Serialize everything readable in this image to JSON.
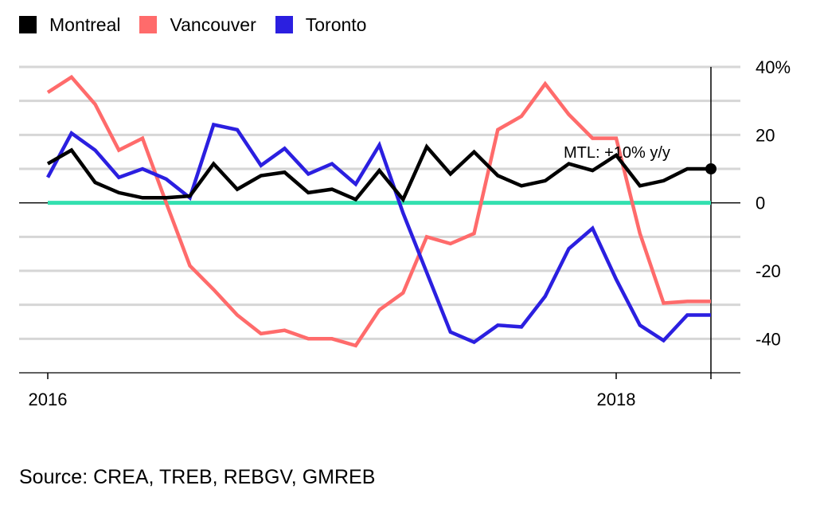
{
  "chart_data": {
    "type": "line",
    "title": "",
    "xlabel": "",
    "ylabel": "",
    "ylim": [
      -50,
      40
    ],
    "yticks": [
      40,
      20,
      0,
      -20,
      -40
    ],
    "ytick_labels": [
      "40%",
      "20",
      "0",
      "-20",
      "-40"
    ],
    "xticks": [
      "2016",
      "2018"
    ],
    "grid": true,
    "legend_position": "top-left",
    "x": [
      "2016-01",
      "2016-02",
      "2016-03",
      "2016-04",
      "2016-05",
      "2016-06",
      "2016-07",
      "2016-08",
      "2016-09",
      "2016-10",
      "2016-11",
      "2016-12",
      "2017-01",
      "2017-02",
      "2017-03",
      "2017-04",
      "2017-05",
      "2017-06",
      "2017-07",
      "2017-08",
      "2017-09",
      "2017-10",
      "2017-11",
      "2017-12",
      "2018-01",
      "2018-02",
      "2018-03",
      "2018-04",
      "2018-05"
    ],
    "series": [
      {
        "name": "Montreal",
        "color": "#000000",
        "values": [
          11.5,
          15.5,
          6,
          3,
          1.5,
          1.5,
          2,
          11.5,
          4,
          8,
          9,
          3,
          4,
          1,
          9.5,
          1,
          16.5,
          8.5,
          15,
          8,
          5,
          6.5,
          11.5,
          9.5,
          14,
          5,
          6.5,
          10,
          10
        ]
      },
      {
        "name": "Vancouver",
        "color": "#ff6b6b",
        "values": [
          32.5,
          37,
          29,
          15.5,
          19,
          0,
          -18.5,
          -25.5,
          -33,
          -38.5,
          -37.5,
          -40,
          -40,
          -42,
          -31.5,
          -26.5,
          -10,
          -12,
          -9,
          21.5,
          25.5,
          35,
          26,
          19,
          19,
          -9,
          -29.5,
          -29,
          -29
        ]
      },
      {
        "name": "Toronto",
        "color": "#2b1fe0",
        "values": [
          7.5,
          20.5,
          15.5,
          7.5,
          10,
          7,
          1.5,
          23,
          21.5,
          11,
          16,
          8.5,
          11.5,
          5.5,
          17,
          -3,
          -20.5,
          -38,
          -41,
          -36,
          -36.5,
          -27.5,
          -13.5,
          -7.5,
          -22.5,
          -36,
          -40.5,
          -33,
          -33
        ]
      }
    ],
    "baseline": {
      "value": 0,
      "color": "#33e0b0"
    },
    "annotation": {
      "text": "MTL: +10% y/y",
      "series": "Montreal",
      "x": "2018-05",
      "y": 10
    }
  },
  "footer": {
    "source": "Source: CREA, TREB, REBGV, GMREB"
  }
}
